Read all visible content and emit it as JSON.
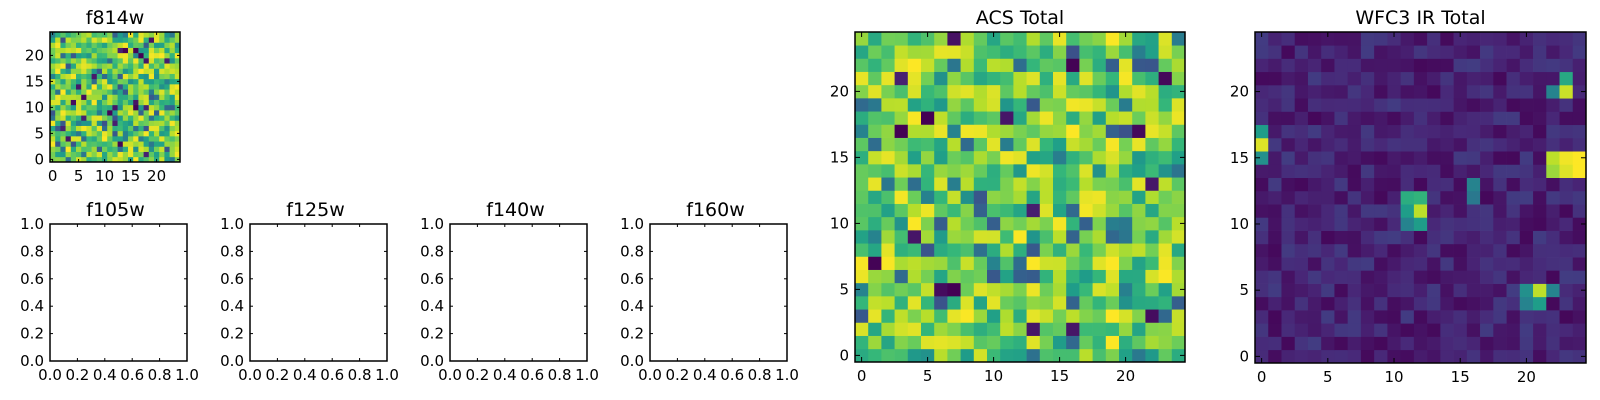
{
  "chart_data": [
    {
      "type": "heatmap",
      "title": "f814w",
      "xlim": [
        -0.5,
        24.5
      ],
      "ylim": [
        -0.5,
        24.5
      ],
      "xticks": [
        0,
        5,
        10,
        15,
        20
      ],
      "yticks": [
        0,
        5,
        10,
        15,
        20
      ],
      "grid_size": [
        25,
        25
      ],
      "colormap": "viridis",
      "content": "random noise image"
    },
    {
      "type": "heatmap",
      "title": "f105w",
      "xlim": [
        0.0,
        1.0
      ],
      "ylim": [
        0.0,
        1.0
      ],
      "xticks": [
        "0.0",
        "0.2",
        "0.4",
        "0.6",
        "0.8",
        "1.0"
      ],
      "yticks": [
        "0.0",
        "0.2",
        "0.4",
        "0.6",
        "0.8",
        "1.0"
      ],
      "content": "empty"
    },
    {
      "type": "heatmap",
      "title": "f125w",
      "xlim": [
        0.0,
        1.0
      ],
      "ylim": [
        0.0,
        1.0
      ],
      "xticks": [
        "0.0",
        "0.2",
        "0.4",
        "0.6",
        "0.8",
        "1.0"
      ],
      "yticks": [
        "0.0",
        "0.2",
        "0.4",
        "0.6",
        "0.8",
        "1.0"
      ],
      "content": "empty"
    },
    {
      "type": "heatmap",
      "title": "f140w",
      "xlim": [
        0.0,
        1.0
      ],
      "ylim": [
        0.0,
        1.0
      ],
      "xticks": [
        "0.0",
        "0.2",
        "0.4",
        "0.6",
        "0.8",
        "1.0"
      ],
      "yticks": [
        "0.0",
        "0.2",
        "0.4",
        "0.6",
        "0.8",
        "1.0"
      ],
      "content": "empty"
    },
    {
      "type": "heatmap",
      "title": "f160w",
      "xlim": [
        0.0,
        1.0
      ],
      "ylim": [
        0.0,
        1.0
      ],
      "xticks": [
        "0.0",
        "0.2",
        "0.4",
        "0.6",
        "0.8",
        "1.0"
      ],
      "yticks": [
        "0.0",
        "0.2",
        "0.4",
        "0.6",
        "0.8",
        "1.0"
      ],
      "content": "empty"
    },
    {
      "type": "heatmap",
      "title": "ACS Total",
      "xlim": [
        -0.5,
        24.5
      ],
      "ylim": [
        -0.5,
        24.5
      ],
      "xticks": [
        0,
        5,
        10,
        15,
        20
      ],
      "yticks": [
        0,
        5,
        10,
        15,
        20
      ],
      "grid_size": [
        25,
        25
      ],
      "colormap": "viridis",
      "content": "random noise image"
    },
    {
      "type": "heatmap",
      "title": "WFC3 IR Total",
      "xlim": [
        -0.5,
        24.5
      ],
      "ylim": [
        -0.5,
        24.5
      ],
      "xticks": [
        0,
        5,
        10,
        15,
        20
      ],
      "yticks": [
        0,
        5,
        10,
        15,
        20
      ],
      "grid_size": [
        25,
        25
      ],
      "colormap": "viridis",
      "content": "dark background with bright sources",
      "bright_sources": [
        {
          "x": 24,
          "y": 15,
          "level": 1.0
        },
        {
          "x": 24,
          "y": 14,
          "level": 1.0
        },
        {
          "x": 23,
          "y": 15,
          "level": 0.98
        },
        {
          "x": 23,
          "y": 14,
          "level": 0.95
        },
        {
          "x": 22,
          "y": 15,
          "level": 0.9
        },
        {
          "x": 22,
          "y": 14,
          "level": 0.85
        },
        {
          "x": 0,
          "y": 16,
          "level": 0.95
        },
        {
          "x": 0,
          "y": 17,
          "level": 0.55
        },
        {
          "x": 0,
          "y": 15,
          "level": 0.5
        },
        {
          "x": 23,
          "y": 20,
          "level": 0.92
        },
        {
          "x": 23,
          "y": 21,
          "level": 0.6
        },
        {
          "x": 22,
          "y": 20,
          "level": 0.45
        },
        {
          "x": 12,
          "y": 11,
          "level": 0.9
        },
        {
          "x": 12,
          "y": 12,
          "level": 0.65
        },
        {
          "x": 11,
          "y": 12,
          "level": 0.62
        },
        {
          "x": 11,
          "y": 11,
          "level": 0.55
        },
        {
          "x": 12,
          "y": 10,
          "level": 0.55
        },
        {
          "x": 11,
          "y": 10,
          "level": 0.45
        },
        {
          "x": 21,
          "y": 5,
          "level": 0.9
        },
        {
          "x": 21,
          "y": 4,
          "level": 0.55
        },
        {
          "x": 20,
          "y": 5,
          "level": 0.5
        },
        {
          "x": 20,
          "y": 4,
          "level": 0.45
        },
        {
          "x": 22,
          "y": 5,
          "level": 0.45
        },
        {
          "x": 16,
          "y": 13,
          "level": 0.45
        },
        {
          "x": 16,
          "y": 12,
          "level": 0.4
        }
      ]
    }
  ]
}
